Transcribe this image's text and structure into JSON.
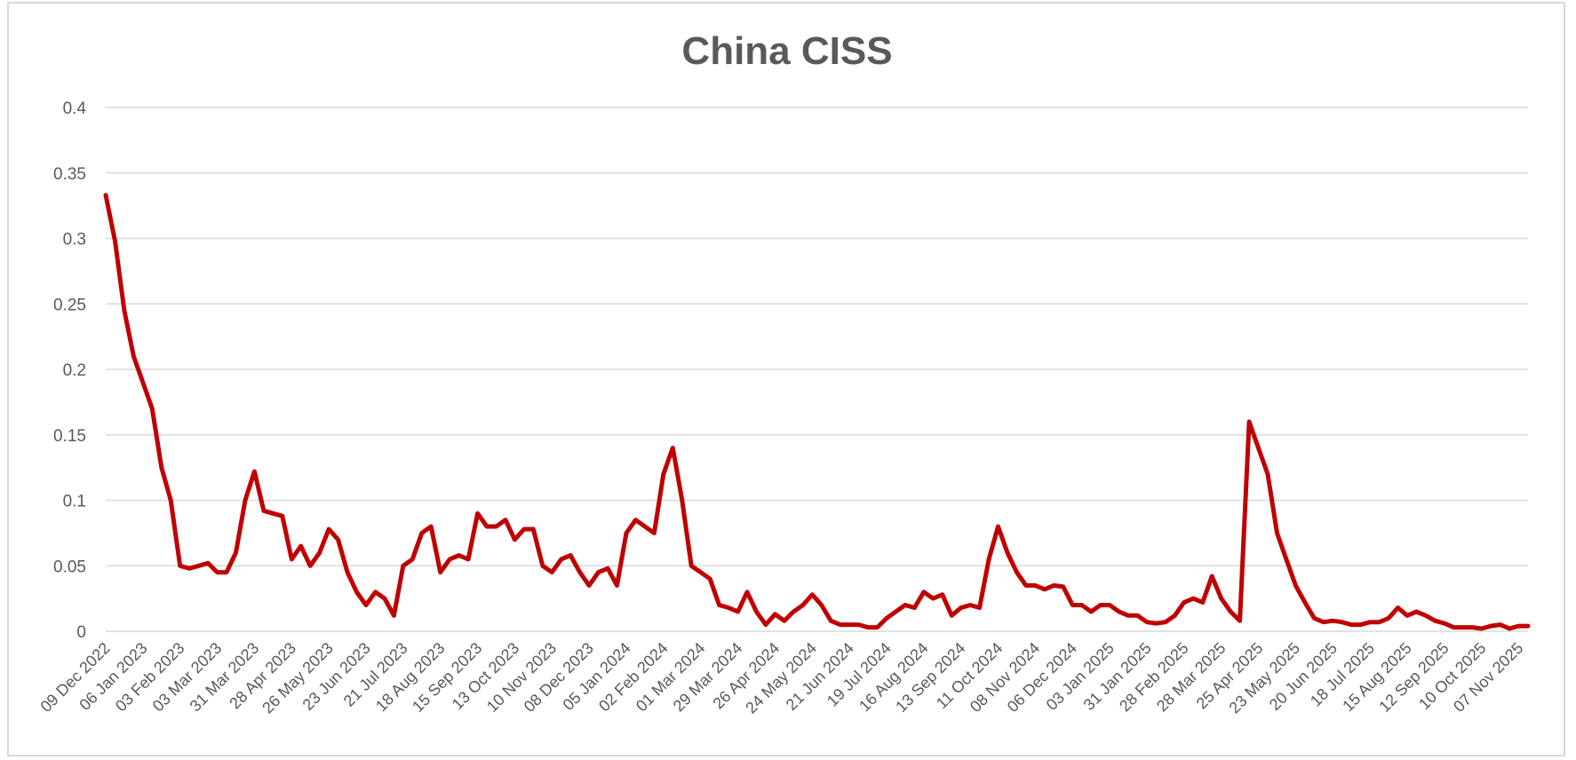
{
  "chart_data": {
    "type": "line",
    "title": "China  CISS",
    "xlabel": "",
    "ylabel": "",
    "ylim": [
      0,
      0.4
    ],
    "y_ticks": [
      "0",
      "0.05",
      "0.1",
      "0.15",
      "0.2",
      "0.25",
      "0.3",
      "0.35",
      "0.4"
    ],
    "grid": "horizontal",
    "legend": "none",
    "line_color": "#C00000",
    "x_tick_labels": [
      "09 Dec 2022",
      "06 Jan 2023",
      "03 Feb 2023",
      "03 Mar 2023",
      "31 Mar 2023",
      "28 Apr 2023",
      "26 May 2023",
      "23 Jun 2023",
      "21 Jul 2023",
      "18 Aug 2023",
      "15 Sep 2023",
      "13 Oct 2023",
      "10 Nov 2023",
      "08 Dec 2023",
      "05 Jan 2024",
      "02 Feb 2024",
      "01 Mar 2024",
      "29 Mar 2024",
      "26 Apr 2024",
      "24 May 2024",
      "21 Jun 2024",
      "19 Jul 2024",
      "16 Aug 2024",
      "13 Sep 2024",
      "11 Oct 2024",
      "08 Nov 2024",
      "06 Dec 2024",
      "03 Jan 2025",
      "31 Jan 2025",
      "28 Feb 2025",
      "28 Mar 2025",
      "25 Apr 2025",
      "23 May 2025",
      "20 Jun 2025",
      "18 Jul 2025",
      "15 Aug 2025",
      "12 Sep 2025",
      "10 Oct 2025",
      "07 Nov 2025"
    ],
    "x": [
      "2022-12-09",
      "2022-12-16",
      "2022-12-23",
      "2022-12-30",
      "2023-01-06",
      "2023-01-13",
      "2023-01-20",
      "2023-01-27",
      "2023-02-03",
      "2023-02-10",
      "2023-02-17",
      "2023-02-24",
      "2023-03-03",
      "2023-03-10",
      "2023-03-17",
      "2023-03-24",
      "2023-03-31",
      "2023-04-07",
      "2023-04-14",
      "2023-04-21",
      "2023-04-28",
      "2023-05-05",
      "2023-05-12",
      "2023-05-19",
      "2023-05-26",
      "2023-06-02",
      "2023-06-09",
      "2023-06-16",
      "2023-06-23",
      "2023-06-30",
      "2023-07-07",
      "2023-07-14",
      "2023-07-21",
      "2023-07-28",
      "2023-08-04",
      "2023-08-11",
      "2023-08-18",
      "2023-08-25",
      "2023-09-01",
      "2023-09-08",
      "2023-09-15",
      "2023-09-22",
      "2023-09-29",
      "2023-10-06",
      "2023-10-13",
      "2023-10-20",
      "2023-10-27",
      "2023-11-03",
      "2023-11-10",
      "2023-11-17",
      "2023-11-24",
      "2023-12-01",
      "2023-12-08",
      "2023-12-15",
      "2023-12-22",
      "2023-12-29",
      "2024-01-05",
      "2024-01-12",
      "2024-01-19",
      "2024-01-26",
      "2024-02-02",
      "2024-02-09",
      "2024-02-16",
      "2024-02-23",
      "2024-03-01",
      "2024-03-08",
      "2024-03-15",
      "2024-03-22",
      "2024-03-29",
      "2024-04-05",
      "2024-04-12",
      "2024-04-19",
      "2024-04-26",
      "2024-05-03",
      "2024-05-10",
      "2024-05-17",
      "2024-05-24",
      "2024-05-31",
      "2024-06-07",
      "2024-06-14",
      "2024-06-21",
      "2024-06-28",
      "2024-07-05",
      "2024-07-12",
      "2024-07-19",
      "2024-07-26",
      "2024-08-02",
      "2024-08-09",
      "2024-08-16",
      "2024-08-23",
      "2024-08-30",
      "2024-09-06",
      "2024-09-13",
      "2024-09-20",
      "2024-09-27",
      "2024-10-04",
      "2024-10-11",
      "2024-10-18",
      "2024-10-25",
      "2024-11-01",
      "2024-11-08",
      "2024-11-15",
      "2024-11-22",
      "2024-11-29",
      "2024-12-06",
      "2024-12-13",
      "2024-12-20",
      "2024-12-27",
      "2025-01-03",
      "2025-01-10",
      "2025-01-17",
      "2025-01-24",
      "2025-01-31",
      "2025-02-07",
      "2025-02-14",
      "2025-02-21",
      "2025-02-28",
      "2025-03-07",
      "2025-03-14",
      "2025-03-21",
      "2025-03-28",
      "2025-04-04",
      "2025-04-11",
      "2025-04-18",
      "2025-04-25",
      "2025-05-02",
      "2025-05-09",
      "2025-05-16",
      "2025-05-23",
      "2025-05-30",
      "2025-06-06",
      "2025-06-13",
      "2025-06-20",
      "2025-06-27",
      "2025-07-04",
      "2025-07-11",
      "2025-07-18",
      "2025-07-25",
      "2025-08-01",
      "2025-08-08",
      "2025-08-15",
      "2025-08-22",
      "2025-08-29",
      "2025-09-05",
      "2025-09-12",
      "2025-09-19",
      "2025-09-26",
      "2025-10-03",
      "2025-10-10",
      "2025-10-17",
      "2025-10-24",
      "2025-10-31",
      "2025-11-07",
      "2025-11-14"
    ],
    "values": [
      0.333,
      0.298,
      0.245,
      0.21,
      0.19,
      0.17,
      0.125,
      0.1,
      0.05,
      0.048,
      0.05,
      0.052,
      0.045,
      0.045,
      0.06,
      0.1,
      0.122,
      0.092,
      0.09,
      0.088,
      0.055,
      0.065,
      0.05,
      0.06,
      0.078,
      0.07,
      0.045,
      0.03,
      0.02,
      0.03,
      0.025,
      0.012,
      0.05,
      0.055,
      0.075,
      0.08,
      0.045,
      0.055,
      0.058,
      0.055,
      0.09,
      0.08,
      0.08,
      0.085,
      0.07,
      0.078,
      0.078,
      0.05,
      0.045,
      0.055,
      0.058,
      0.045,
      0.035,
      0.045,
      0.048,
      0.035,
      0.075,
      0.085,
      0.08,
      0.075,
      0.12,
      0.14,
      0.1,
      0.05,
      0.045,
      0.04,
      0.02,
      0.018,
      0.015,
      0.03,
      0.015,
      0.005,
      0.013,
      0.008,
      0.015,
      0.02,
      0.028,
      0.02,
      0.008,
      0.005,
      0.005,
      0.005,
      0.003,
      0.003,
      0.01,
      0.015,
      0.02,
      0.018,
      0.03,
      0.025,
      0.028,
      0.012,
      0.018,
      0.02,
      0.018,
      0.055,
      0.08,
      0.06,
      0.045,
      0.035,
      0.035,
      0.032,
      0.035,
      0.034,
      0.02,
      0.02,
      0.015,
      0.02,
      0.02,
      0.015,
      0.012,
      0.012,
      0.007,
      0.006,
      0.007,
      0.012,
      0.022,
      0.025,
      0.022,
      0.042,
      0.025,
      0.015,
      0.008,
      0.16,
      0.14,
      0.12,
      0.075,
      0.055,
      0.035,
      0.022,
      0.01,
      0.007,
      0.008,
      0.007,
      0.005,
      0.005,
      0.007,
      0.007,
      0.01,
      0.018,
      0.012,
      0.015,
      0.012,
      0.008,
      0.006,
      0.003,
      0.003,
      0.003,
      0.002,
      0.004,
      0.005,
      0.002,
      0.004,
      0.004
    ]
  }
}
